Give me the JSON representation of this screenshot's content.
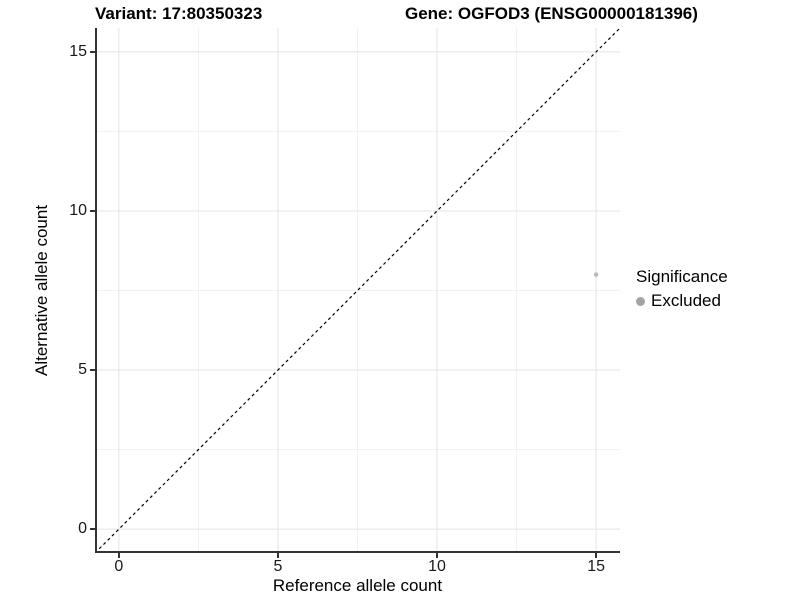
{
  "chart_data": {
    "type": "scatter",
    "title_left": "Variant: 17:80350323",
    "title_right": "Gene: OGFOD3 (ENSG00000181396)",
    "xlabel": "Reference allele count",
    "ylabel": "Alternative allele count",
    "xlim": [
      -0.75,
      15.75
    ],
    "ylim": [
      -0.75,
      15.75
    ],
    "xticks": [
      0,
      5,
      10,
      15
    ],
    "yticks": [
      0,
      5,
      10,
      15
    ],
    "minor_ticks": [
      2.5,
      7.5,
      12.5
    ],
    "grid": true,
    "points": [
      {
        "x": 15,
        "y": 8,
        "series": "Excluded"
      }
    ],
    "reference_line": {
      "type": "identity",
      "style": "dashed",
      "equation": "y = x"
    },
    "legend": {
      "title": "Significance",
      "position": "right",
      "entries": [
        {
          "label": "Excluded",
          "color": "#a3a3a3"
        }
      ]
    },
    "colors": {
      "point": "#bdbdbd",
      "grid_major": "#e4e4e4",
      "grid_minor": "#f1f1f1",
      "axis": "#333333",
      "reference_line": "#000000",
      "title": "#000000",
      "tick_label": "#1a1a1a"
    }
  }
}
